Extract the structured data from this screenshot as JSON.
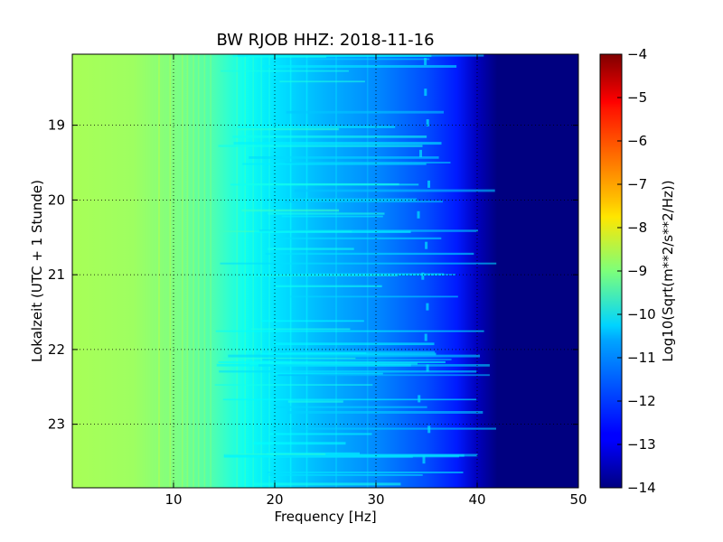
{
  "chart_data": {
    "type": "heatmap",
    "title": "BW RJOB HHZ: 2018-11-16",
    "xlabel": "Frequency [Hz]",
    "ylabel": "Lokalzeit (UTC + 1 Stunde)",
    "xlim": [
      0,
      50
    ],
    "ylim": [
      18.05,
      23.85
    ],
    "x_ticks": [
      10,
      20,
      30,
      40,
      50
    ],
    "y_ticks": [
      19,
      20,
      21,
      22,
      23
    ],
    "grid": true,
    "colormap": "jet",
    "colorbar": {
      "label": "Log10(Sqrt(m**2/s**2/Hz))",
      "min": -14,
      "max": -4,
      "ticks": [
        -4,
        -5,
        -6,
        -7,
        -8,
        -9,
        -10,
        -11,
        -12,
        -13,
        -14
      ],
      "tick_labels": [
        "−4",
        "−5",
        "−6",
        "−7",
        "−8",
        "−9",
        "−10",
        "−11",
        "−12",
        "−13",
        "−14"
      ]
    },
    "freq_profile": [
      {
        "f": 0,
        "v": -8.6
      },
      {
        "f": 6,
        "v": -8.7
      },
      {
        "f": 10,
        "v": -9.0
      },
      {
        "f": 14,
        "v": -9.5
      },
      {
        "f": 17,
        "v": -10.1
      },
      {
        "f": 20,
        "v": -10.5
      },
      {
        "f": 25,
        "v": -11.0
      },
      {
        "f": 30,
        "v": -11.4
      },
      {
        "f": 35,
        "v": -12.0
      },
      {
        "f": 38,
        "v": -12.5
      },
      {
        "f": 40,
        "v": -13.4
      },
      {
        "f": 42,
        "v": -14.0
      },
      {
        "f": 50,
        "v": -14.0
      }
    ]
  }
}
